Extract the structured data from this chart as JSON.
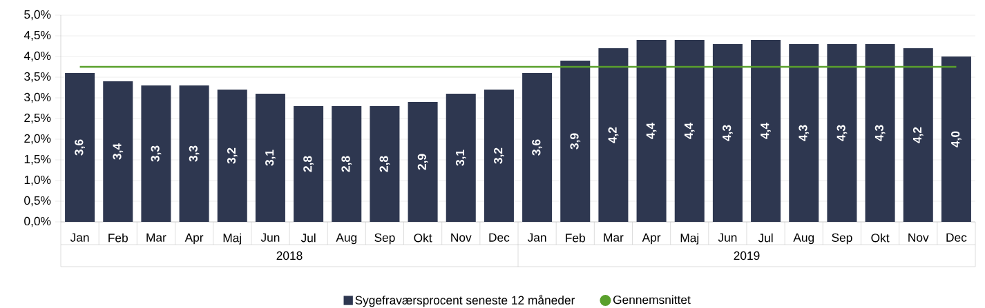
{
  "chart_data": {
    "type": "bar",
    "categories": [
      "Jan",
      "Feb",
      "Mar",
      "Apr",
      "Maj",
      "Jun",
      "Jul",
      "Aug",
      "Sep",
      "Okt",
      "Nov",
      "Dec",
      "Jan",
      "Feb",
      "Mar",
      "Apr",
      "Maj",
      "Jun",
      "Jul",
      "Aug",
      "Sep",
      "Okt",
      "Nov",
      "Dec"
    ],
    "series": [
      {
        "name": "Sygefraværsprocent seneste 12 måneder",
        "color": "#2e3750",
        "values": [
          3.6,
          3.4,
          3.3,
          3.3,
          3.2,
          3.1,
          2.8,
          2.8,
          2.8,
          2.9,
          3.1,
          3.2,
          3.6,
          3.9,
          4.2,
          4.4,
          4.4,
          4.3,
          4.4,
          4.3,
          4.3,
          4.3,
          4.2,
          4.0
        ],
        "value_labels": [
          "3,6",
          "3,4",
          "3,3",
          "3,3",
          "3,2",
          "3,1",
          "2,8",
          "2,8",
          "2,8",
          "2,9",
          "3,1",
          "3,2",
          "3,6",
          "3,9",
          "4,2",
          "4,4",
          "4,4",
          "4,3",
          "4,4",
          "4,3",
          "4,3",
          "4,3",
          "4,2",
          "4,0"
        ]
      },
      {
        "name": "Gennemsnittet",
        "type": "line",
        "color": "#5aa02c",
        "values": [
          3.75,
          3.75,
          3.75,
          3.75,
          3.75,
          3.75,
          3.75,
          3.75,
          3.75,
          3.75,
          3.75,
          3.75,
          3.75,
          3.75,
          3.75,
          3.75,
          3.75,
          3.75,
          3.75,
          3.75,
          3.75,
          3.75,
          3.75,
          3.75
        ]
      }
    ],
    "ylim": [
      0,
      5
    ],
    "yticks": [
      {
        "value": 0,
        "label": "0,0%"
      },
      {
        "value": 0.5,
        "label": "0,5%"
      },
      {
        "value": 1,
        "label": "1,0%"
      },
      {
        "value": 1.5,
        "label": "1,5%"
      },
      {
        "value": 2,
        "label": "2,0%"
      },
      {
        "value": 2.5,
        "label": "2,5%"
      },
      {
        "value": 3,
        "label": "3,0%"
      },
      {
        "value": 3.5,
        "label": "3,5%"
      },
      {
        "value": 4,
        "label": "4,0%"
      },
      {
        "value": 4.5,
        "label": "4,5%"
      },
      {
        "value": 5,
        "label": "5,0%"
      }
    ],
    "annotations": [
      "2018",
      "2019"
    ],
    "grid": "y",
    "legend": "bottom"
  }
}
